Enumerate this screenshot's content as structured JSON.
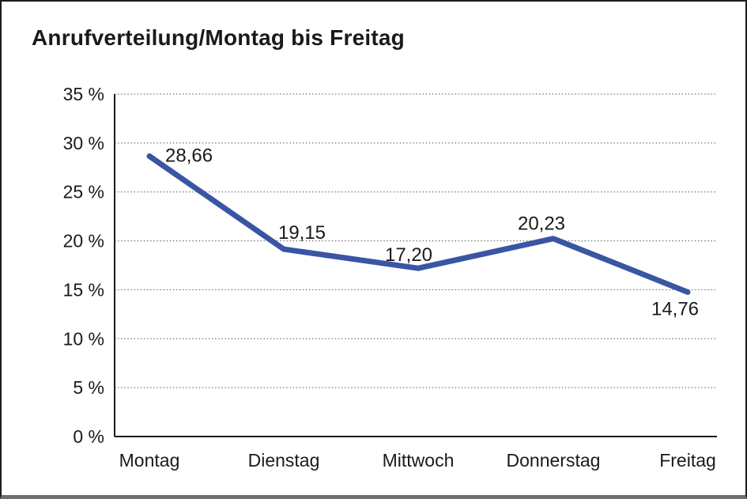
{
  "chart_data": {
    "type": "line",
    "title": "Anrufverteilung/Montag bis Freitag",
    "categories": [
      "Montag",
      "Dienstag",
      "Mittwoch",
      "Donnerstag",
      "Freitag"
    ],
    "values": [
      28.66,
      19.15,
      17.2,
      20.23,
      14.76
    ],
    "value_labels": [
      "28,66",
      "19,15",
      "17,20",
      "20,23",
      "14,76"
    ],
    "xlabel": "",
    "ylabel": "",
    "ylim": [
      0,
      35
    ],
    "ytick_step": 5,
    "ytick_labels": [
      "0 %",
      "5 %",
      "10 %",
      "15 %",
      "20 %",
      "25 %",
      "30 %",
      "35 %"
    ],
    "grid": "horizontal-dotted",
    "legend": "none"
  },
  "colors": {
    "line": "#3A55A4",
    "text": "#1A1A1A",
    "grid": "#555555",
    "frame_border": "#1C1C1C",
    "frame_bottom": "#6E6E6E",
    "background": "#FFFFFF"
  }
}
